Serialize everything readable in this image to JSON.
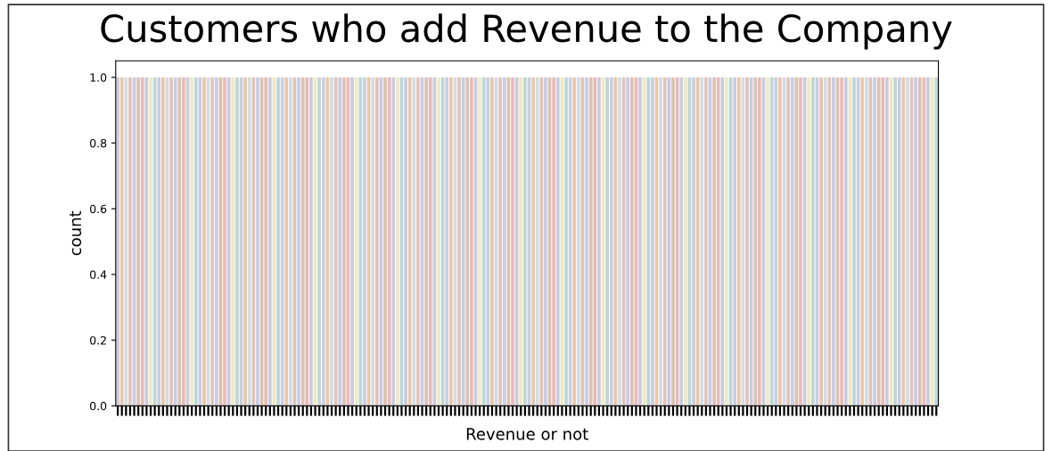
{
  "chart_data": {
    "type": "bar",
    "title": "Customers who add Revenue to the Company",
    "xlabel": "Revenue or not",
    "ylabel": "count",
    "categories": [
      null,
      null,
      null,
      null,
      null,
      null,
      null,
      null,
      null,
      null,
      null,
      null,
      null,
      null,
      null,
      null,
      null,
      null,
      null,
      null,
      null,
      null,
      null,
      null,
      null,
      null,
      null,
      null,
      null,
      null,
      null,
      null,
      null,
      null,
      null,
      null,
      null,
      null,
      null,
      null,
      null,
      null,
      null,
      null,
      null,
      null,
      null,
      null,
      null,
      null,
      null,
      null,
      null,
      null,
      null,
      null,
      null,
      null,
      null,
      null,
      null,
      null,
      null,
      null,
      null,
      null,
      null,
      null,
      null,
      null,
      null,
      null,
      null,
      null,
      null,
      null,
      null,
      null,
      null,
      null,
      null,
      null,
      null,
      null,
      null,
      null,
      null,
      null,
      null,
      null,
      null,
      null,
      null,
      null,
      null,
      null,
      null,
      null,
      null,
      null,
      null,
      null,
      null,
      null,
      null,
      null,
      null,
      null,
      null,
      null,
      null,
      null,
      null,
      null,
      null,
      null,
      null,
      null,
      null,
      null,
      null,
      null,
      null,
      null,
      null,
      null,
      null,
      null,
      null,
      null,
      null,
      null,
      null,
      null,
      null,
      null,
      null,
      null,
      null,
      null,
      null,
      null,
      null,
      null,
      null,
      null,
      null,
      null,
      null,
      null,
      null,
      null,
      null,
      null,
      null,
      null,
      null,
      null,
      null,
      null,
      null,
      null,
      null,
      null,
      null,
      null,
      null,
      null,
      null,
      null,
      null,
      null,
      null,
      null,
      null,
      null,
      null,
      null,
      null,
      null,
      null,
      null,
      null,
      null,
      null,
      null,
      null,
      null,
      null,
      null,
      null,
      null,
      null,
      null,
      null,
      null,
      null,
      null,
      null,
      null
    ],
    "values": [
      1,
      1,
      1,
      1,
      1,
      1,
      1,
      1,
      1,
      1,
      1,
      1,
      1,
      1,
      1,
      1,
      1,
      1,
      1,
      1,
      1,
      1,
      1,
      1,
      1,
      1,
      1,
      1,
      1,
      1,
      1,
      1,
      1,
      1,
      1,
      1,
      1,
      1,
      1,
      1,
      1,
      1,
      1,
      1,
      1,
      1,
      1,
      1,
      1,
      1,
      1,
      1,
      1,
      1,
      1,
      1,
      1,
      1,
      1,
      1,
      1,
      1,
      1,
      1,
      1,
      1,
      1,
      1,
      1,
      1,
      1,
      1,
      1,
      1,
      1,
      1,
      1,
      1,
      1,
      1,
      1,
      1,
      1,
      1,
      1,
      1,
      1,
      1,
      1,
      1,
      1,
      1,
      1,
      1,
      1,
      1,
      1,
      1,
      1,
      1,
      1,
      1,
      1,
      1,
      1,
      1,
      1,
      1,
      1,
      1,
      1,
      1,
      1,
      1,
      1,
      1,
      1,
      1,
      1,
      1,
      1,
      1,
      1,
      1,
      1,
      1,
      1,
      1,
      1,
      1,
      1,
      1,
      1,
      1,
      1,
      1,
      1,
      1,
      1,
      1,
      1,
      1,
      1,
      1,
      1,
      1,
      1,
      1,
      1,
      1,
      1,
      1,
      1,
      1,
      1,
      1,
      1,
      1,
      1,
      1,
      1,
      1,
      1,
      1,
      1,
      1,
      1,
      1,
      1,
      1,
      1,
      1,
      1,
      1,
      1,
      1,
      1,
      1,
      1,
      1,
      1,
      1,
      1,
      1,
      1,
      1,
      1,
      1,
      1,
      1,
      1,
      1,
      1,
      1,
      1,
      1,
      1,
      1,
      1,
      1
    ],
    "colors": [
      "#c9cde0",
      "#e9c6a8",
      "#d3dbe3",
      "#e0c4b8",
      "#c8cbe8",
      "#dcc2b0",
      "#e8bab8",
      "#c9ccdc",
      "#eee8c4",
      "#bcd6d8",
      "#c9cde0",
      "#e9c6a8",
      "#d3dbe3",
      "#e0c4b8",
      "#c8cbe8",
      "#dcc2b0",
      "#e8bab8",
      "#c9ccdc",
      "#eee8c4",
      "#bcd6d8",
      "#c9cde0",
      "#e9c6a8",
      "#d3dbe3",
      "#e0c4b8",
      "#c8cbe8",
      "#dcc2b0",
      "#e8bab8",
      "#c9ccdc",
      "#eee8c4",
      "#bcd6d8",
      "#c9cde0",
      "#e9c6a8",
      "#d3dbe3",
      "#e0c4b8",
      "#c8cbe8",
      "#dcc2b0",
      "#e8bab8",
      "#c9ccdc",
      "#eee8c4",
      "#bcd6d8",
      "#c9cde0",
      "#e9c6a8",
      "#d3dbe3",
      "#e0c4b8",
      "#c8cbe8",
      "#dcc2b0",
      "#e8bab8",
      "#c9ccdc",
      "#eee8c4",
      "#bcd6d8",
      "#c9cde0",
      "#e9c6a8",
      "#d3dbe3",
      "#e0c4b8",
      "#c8cbe8",
      "#dcc2b0",
      "#e8bab8",
      "#c9ccdc",
      "#eee8c4",
      "#bcd6d8",
      "#c9cde0",
      "#e9c6a8",
      "#d3dbe3",
      "#e0c4b8",
      "#c8cbe8",
      "#dcc2b0",
      "#e8bab8",
      "#c9ccdc",
      "#eee8c4",
      "#bcd6d8",
      "#c9cde0",
      "#e9c6a8",
      "#d3dbe3",
      "#e0c4b8",
      "#c8cbe8",
      "#dcc2b0",
      "#e8bab8",
      "#c9ccdc",
      "#eee8c4",
      "#bcd6d8",
      "#c9cde0",
      "#e9c6a8",
      "#d3dbe3",
      "#e0c4b8",
      "#c8cbe8",
      "#dcc2b0",
      "#e8bab8",
      "#c9ccdc",
      "#eee8c4",
      "#bcd6d8",
      "#c9cde0",
      "#e9c6a8",
      "#d3dbe3",
      "#e0c4b8",
      "#c8cbe8",
      "#dcc2b0",
      "#e8bab8",
      "#c9ccdc",
      "#eee8c4",
      "#bcd6d8",
      "#c9cde0",
      "#e9c6a8",
      "#d3dbe3",
      "#e0c4b8",
      "#c8cbe8",
      "#dcc2b0",
      "#e8bab8",
      "#c9ccdc",
      "#eee8c4",
      "#bcd6d8",
      "#c9cde0",
      "#e9c6a8",
      "#d3dbe3",
      "#e0c4b8",
      "#c8cbe8",
      "#dcc2b0",
      "#e8bab8",
      "#c9ccdc",
      "#eee8c4",
      "#bcd6d8",
      "#c9cde0",
      "#e9c6a8",
      "#d3dbe3",
      "#e0c4b8",
      "#c8cbe8",
      "#dcc2b0",
      "#e8bab8",
      "#c9ccdc",
      "#eee8c4",
      "#bcd6d8",
      "#c9cde0",
      "#e9c6a8",
      "#d3dbe3",
      "#e0c4b8",
      "#c8cbe8",
      "#dcc2b0",
      "#e8bab8",
      "#c9ccdc",
      "#eee8c4",
      "#bcd6d8",
      "#c9cde0",
      "#e9c6a8",
      "#d3dbe3",
      "#e0c4b8",
      "#c8cbe8",
      "#dcc2b0",
      "#e8bab8",
      "#c9ccdc",
      "#eee8c4",
      "#bcd6d8",
      "#c9cde0",
      "#e9c6a8",
      "#d3dbe3",
      "#e0c4b8",
      "#c8cbe8",
      "#dcc2b0",
      "#e8bab8",
      "#c9ccdc",
      "#eee8c4",
      "#bcd6d8",
      "#c9cde0",
      "#e9c6a8",
      "#d3dbe3",
      "#e0c4b8",
      "#c8cbe8",
      "#dcc2b0",
      "#e8bab8",
      "#c9ccdc",
      "#eee8c4",
      "#bcd6d8",
      "#c9cde0",
      "#e9c6a8",
      "#d3dbe3",
      "#e0c4b8",
      "#c8cbe8",
      "#dcc2b0",
      "#e8bab8",
      "#c9ccdc",
      "#eee8c4",
      "#bcd6d8",
      "#c9cde0",
      "#e9c6a8",
      "#d3dbe3",
      "#e0c4b8",
      "#c8cbe8",
      "#dcc2b0",
      "#e8bab8",
      "#c9ccdc",
      "#eee8c4",
      "#bcd6d8",
      "#c9cde0",
      "#e9c6a8",
      "#d3dbe3",
      "#e0c4b8",
      "#c8cbe8",
      "#dcc2b0",
      "#e8bab8",
      "#c9ccdc",
      "#eee8c4",
      "#bcd6d8"
    ],
    "ylim": [
      0,
      1.05
    ],
    "yticks": [
      {
        "value": 0,
        "label": "0.0"
      },
      {
        "value": 0.2,
        "label": "0.2"
      },
      {
        "value": 0.4,
        "label": "0.4"
      },
      {
        "value": 0.6,
        "label": "0.6"
      },
      {
        "value": 0.8,
        "label": "0.8"
      },
      {
        "value": 1,
        "label": "1.0"
      }
    ],
    "grid": false,
    "legend": false
  }
}
